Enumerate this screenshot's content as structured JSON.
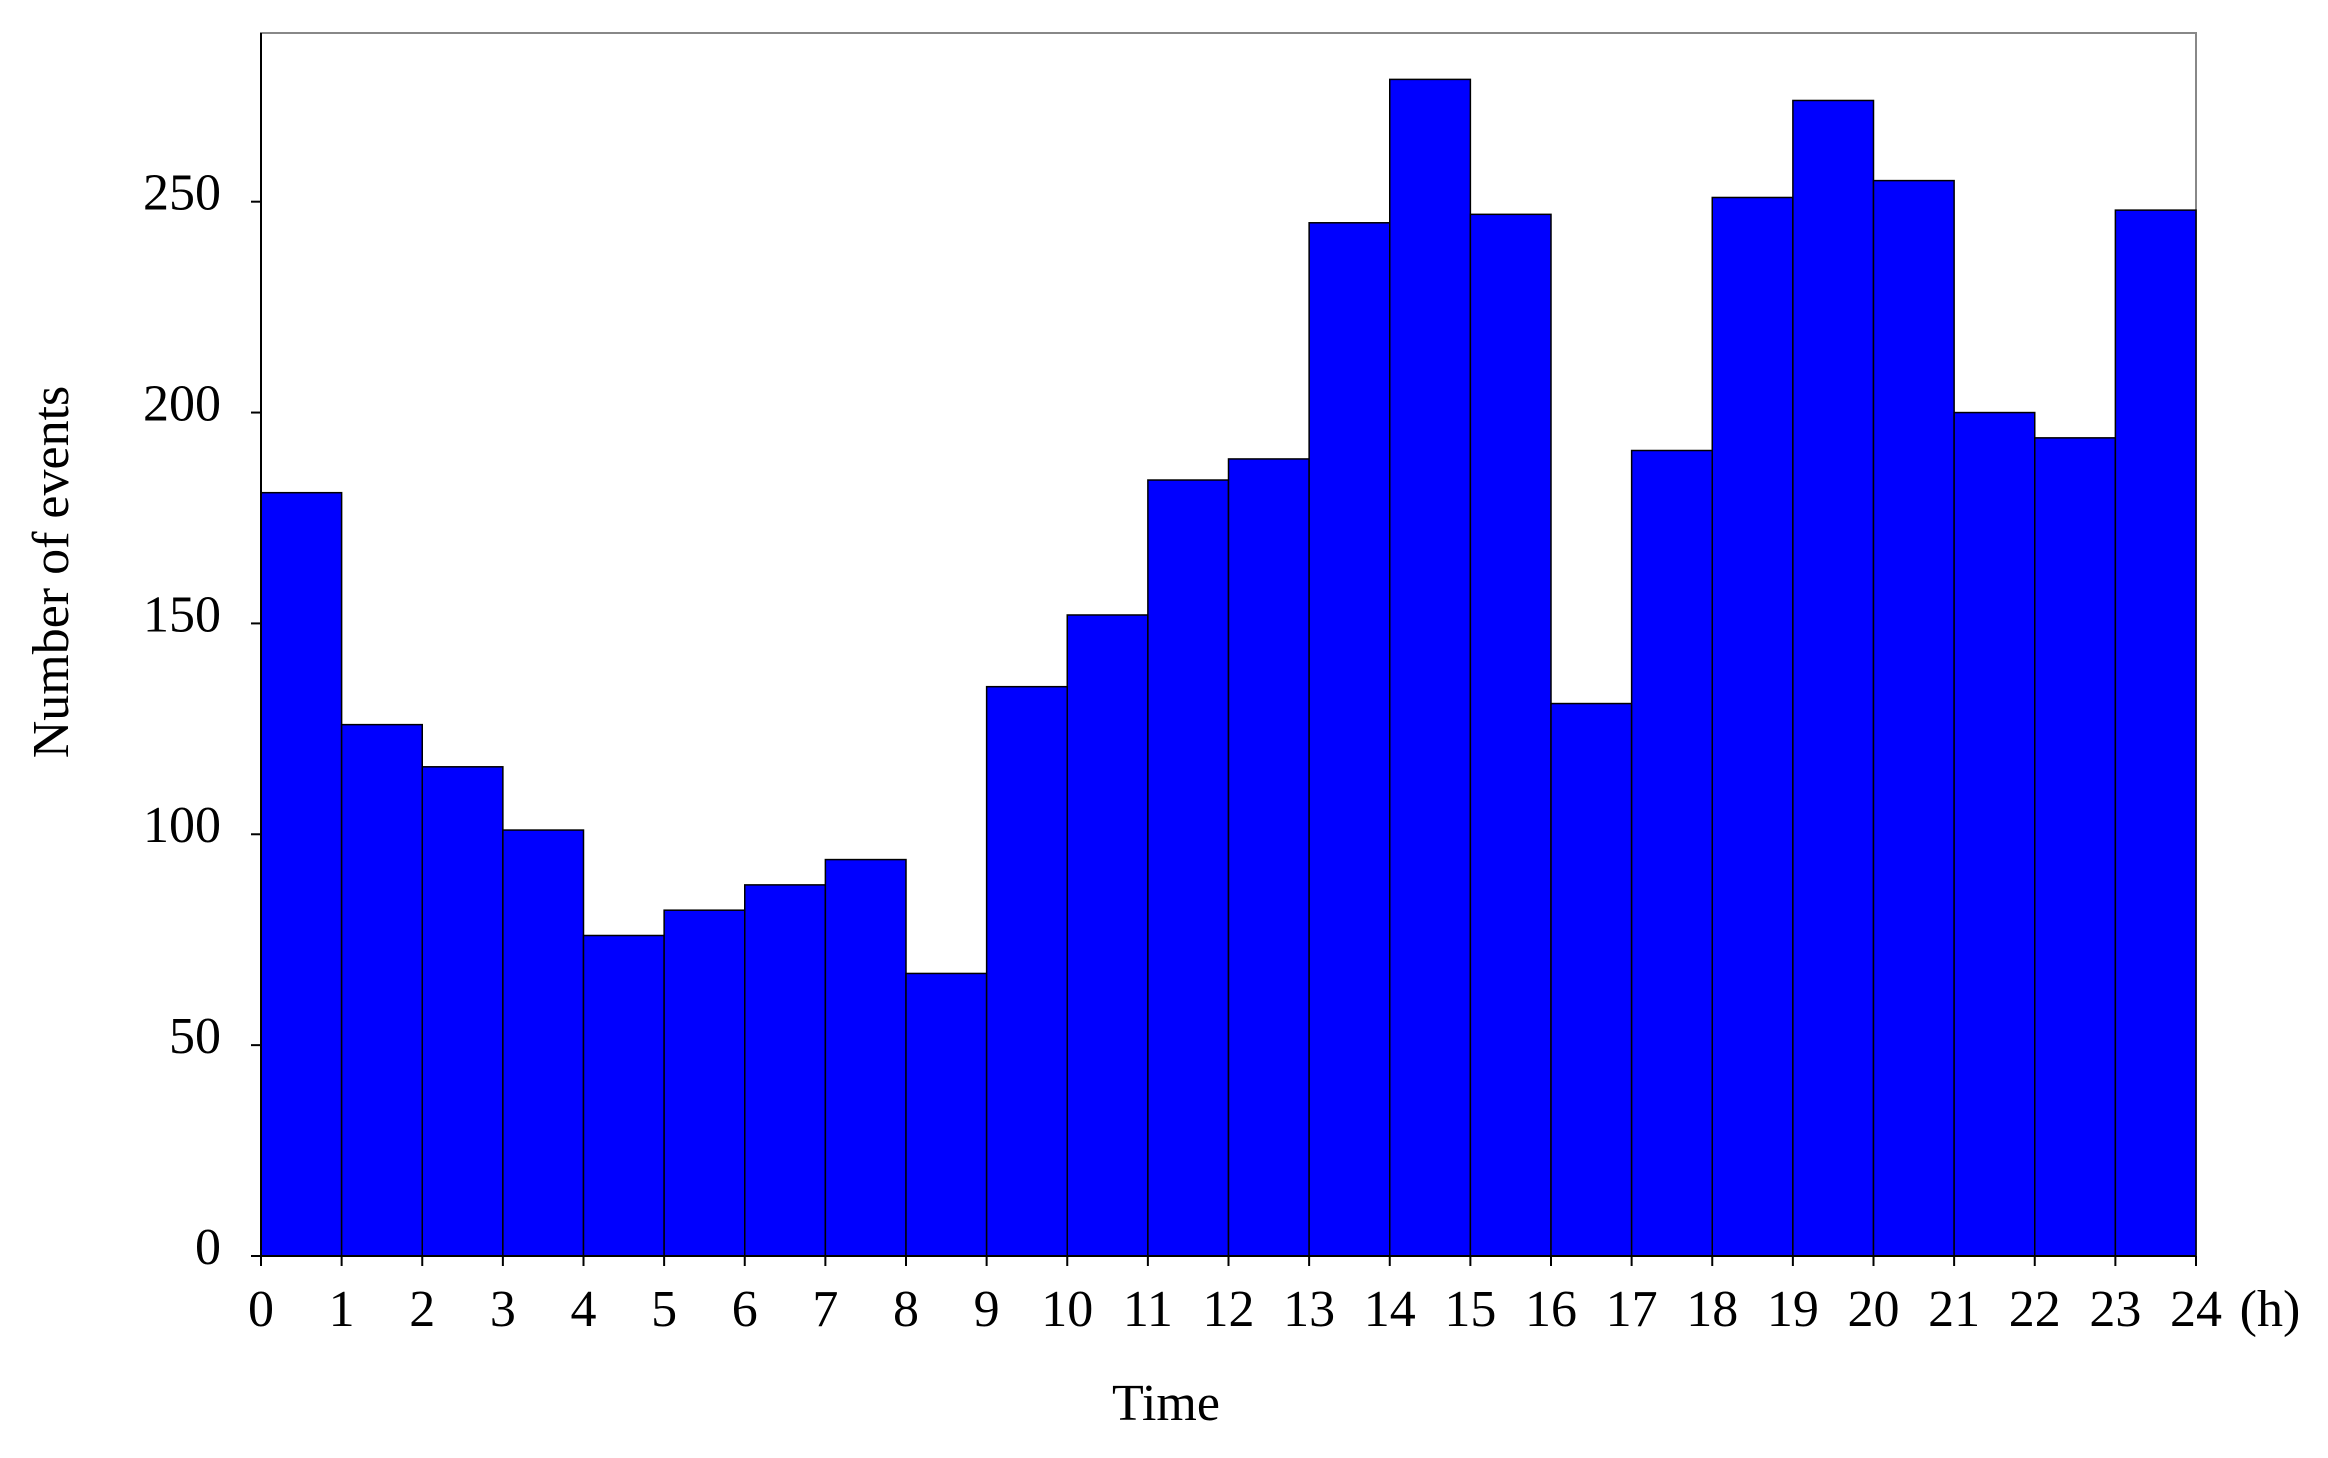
{
  "chart_data": {
    "type": "histogram",
    "xlabel": "Time",
    "ylabel": "Number of events",
    "x_unit": "(h)",
    "bins": [
      0,
      1,
      2,
      3,
      4,
      5,
      6,
      7,
      8,
      9,
      10,
      11,
      12,
      13,
      14,
      15,
      16,
      17,
      18,
      19,
      20,
      21,
      22,
      23,
      24
    ],
    "values": [
      181,
      126,
      116,
      101,
      76,
      82,
      88,
      94,
      67,
      135,
      152,
      184,
      189,
      245,
      279,
      247,
      131,
      191,
      251,
      274,
      255,
      200,
      194,
      248
    ],
    "color": "#0000ff",
    "xlim": [
      0,
      24
    ],
    "xticks": [
      0,
      1,
      2,
      3,
      4,
      5,
      6,
      7,
      8,
      9,
      10,
      11,
      12,
      13,
      14,
      15,
      16,
      17,
      18,
      19,
      20,
      21,
      22,
      23,
      24
    ],
    "ylim": [
      0,
      290
    ],
    "yticks": [
      0,
      50,
      100,
      150,
      200,
      250
    ]
  }
}
